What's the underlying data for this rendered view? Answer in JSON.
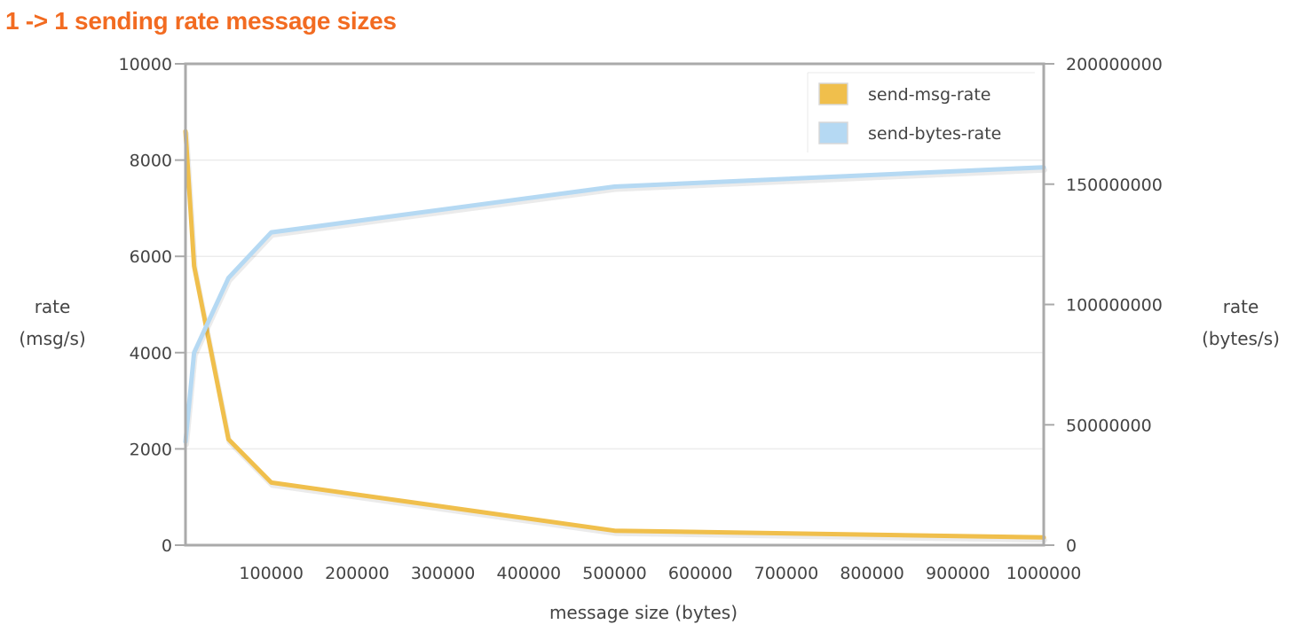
{
  "chart_data": {
    "type": "line",
    "title": "1 -> 1 sending rate message sizes",
    "xlabel": "message size (bytes)",
    "ylabel_left": [
      "rate",
      "(msg/s)"
    ],
    "ylabel_right": [
      "rate",
      "(bytes/s)"
    ],
    "x": [
      0,
      10000,
      50000,
      100000,
      500000,
      1000000
    ],
    "xlim": [
      0,
      1000000
    ],
    "x_ticks": [
      "100000",
      "200000",
      "300000",
      "400000",
      "500000",
      "600000",
      "700000",
      "800000",
      "900000",
      "1000000"
    ],
    "ylim_left": [
      0,
      10000
    ],
    "y_ticks_left": [
      "0",
      "2000",
      "4000",
      "6000",
      "8000",
      "10000"
    ],
    "ylim_right": [
      0,
      200000000
    ],
    "y_ticks_right": [
      "0",
      "50000000",
      "100000000",
      "150000000",
      "200000000"
    ],
    "grid": true,
    "legend_position": "top-right",
    "series": [
      {
        "name": "send-msg-rate",
        "axis": "left",
        "color": "#f0bf4c",
        "values": [
          8600,
          5800,
          2200,
          1300,
          300,
          160
        ]
      },
      {
        "name": "send-bytes-rate",
        "axis": "right",
        "color": "#b5d9f3",
        "values": [
          43000000,
          80000000,
          111000000,
          130000000,
          149000000,
          157000000
        ]
      }
    ]
  }
}
